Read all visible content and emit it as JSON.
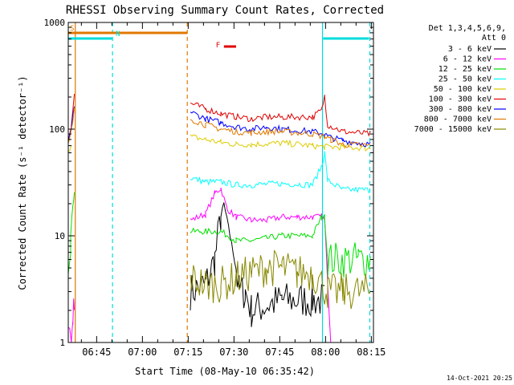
{
  "chart_data": {
    "type": "line",
    "title": "RHESSI Observing Summary Count Rates, Corrected",
    "xlabel": "Start Time (08-May-10 06:35:42)",
    "ylabel": "Corrected Count Rate (s⁻¹ detector⁻¹)",
    "y_scale": "log",
    "ylim": [
      1,
      1000
    ],
    "y_ticks": [
      1,
      10,
      100,
      1000
    ],
    "xlim_minutes": [
      0,
      100
    ],
    "x_ticks": [
      {
        "min": 9.3,
        "label": "06:45"
      },
      {
        "min": 24.3,
        "label": "07:00"
      },
      {
        "min": 39.3,
        "label": "07:15"
      },
      {
        "min": 54.3,
        "label": "07:30"
      },
      {
        "min": 69.3,
        "label": "07:45"
      },
      {
        "min": 84.3,
        "label": "08:00"
      },
      {
        "min": 99.3,
        "label": "08:15"
      }
    ],
    "legend_header": [
      "Det 1,3,4,5,6,9,",
      "Att 0"
    ],
    "legend_placement": "right",
    "timestamp": "14-Oct-2021 20:25",
    "flags": [
      {
        "label": "S",
        "color": "#e07800",
        "start": 0,
        "end": 39,
        "dashed": false
      },
      {
        "label": "N",
        "color": "#00dcdc",
        "start": 0,
        "end": 14.5,
        "dashed": false
      },
      {
        "label": "N",
        "color": "#00dcdc",
        "start": 83.5,
        "end": 98.5,
        "dashed": false
      },
      {
        "label": "F",
        "color": "#e00000",
        "start": 51,
        "end": 55,
        "dashed": false
      }
    ],
    "vlines": [
      {
        "min": 2.3,
        "color": "#e07800",
        "dashed": false
      },
      {
        "min": 14.5,
        "color": "#00dcdc",
        "dashed": true
      },
      {
        "min": 39.0,
        "color": "#e07800",
        "dashed": true
      },
      {
        "min": 83.3,
        "color": "#00dcdc",
        "dashed": false
      },
      {
        "min": 98.8,
        "color": "#00dcdc",
        "dashed": true
      }
    ],
    "series": [
      {
        "name": "3 - 6 keV",
        "color": "#000000",
        "points": [
          [
            40,
            3
          ],
          [
            45,
            3.5
          ],
          [
            48,
            6
          ],
          [
            50,
            15
          ],
          [
            51,
            20
          ],
          [
            53,
            10
          ],
          [
            55,
            5
          ],
          [
            56,
            3
          ],
          [
            58,
            3
          ],
          [
            60,
            2
          ],
          [
            70,
            2.5
          ],
          [
            80,
            2.5
          ],
          [
            83,
            2.5
          ],
          [
            84,
            2.5
          ]
        ]
      },
      {
        "name": "6 - 12 keV",
        "color": "#ff00ff",
        "points": [
          [
            0,
            1
          ],
          [
            1,
            1.2
          ],
          [
            1.5,
            2.2
          ],
          [
            2,
            2.5
          ],
          [
            40,
            14
          ],
          [
            45,
            16
          ],
          [
            48,
            25
          ],
          [
            50,
            28
          ],
          [
            52,
            18
          ],
          [
            55,
            15
          ],
          [
            60,
            14
          ],
          [
            65,
            14
          ],
          [
            70,
            15
          ],
          [
            75,
            15
          ],
          [
            80,
            15
          ],
          [
            83,
            15
          ],
          [
            84,
            14
          ],
          [
            86,
            1
          ]
        ]
      },
      {
        "name": "12 - 25 keV",
        "color": "#00e000",
        "points": [
          [
            0,
            6
          ],
          [
            0.8,
            10
          ],
          [
            1.5,
            20
          ],
          [
            2,
            25
          ],
          [
            40,
            11
          ],
          [
            45,
            11
          ],
          [
            50,
            11
          ],
          [
            55,
            9
          ],
          [
            60,
            9
          ],
          [
            70,
            10
          ],
          [
            80,
            10
          ],
          [
            83,
            15
          ],
          [
            84,
            15
          ],
          [
            85,
            6
          ],
          [
            95,
            6
          ],
          [
            99,
            6
          ]
        ]
      },
      {
        "name": "25 - 50 keV",
        "color": "#00ffff",
        "points": [
          [
            40,
            35
          ],
          [
            45,
            32
          ],
          [
            50,
            32
          ],
          [
            55,
            30
          ],
          [
            60,
            30
          ],
          [
            70,
            31
          ],
          [
            80,
            30
          ],
          [
            83,
            45
          ],
          [
            84,
            60
          ],
          [
            85,
            33
          ],
          [
            90,
            27
          ],
          [
            99,
            27
          ]
        ]
      },
      {
        "name": "50 - 100 keV",
        "color": "#ddcc00",
        "points": [
          [
            0,
            64
          ],
          [
            1,
            70
          ],
          [
            40,
            85
          ],
          [
            45,
            80
          ],
          [
            50,
            75
          ],
          [
            55,
            72
          ],
          [
            60,
            72
          ],
          [
            70,
            74
          ],
          [
            80,
            70
          ],
          [
            84,
            68
          ],
          [
            90,
            68
          ],
          [
            99,
            66
          ]
        ]
      },
      {
        "name": "100 - 300 keV",
        "color": "#e00000",
        "points": [
          [
            0,
            80
          ],
          [
            1,
            110
          ],
          [
            2,
            210
          ],
          [
            40,
            175
          ],
          [
            45,
            155
          ],
          [
            50,
            140
          ],
          [
            55,
            130
          ],
          [
            60,
            125
          ],
          [
            65,
            130
          ],
          [
            70,
            130
          ],
          [
            80,
            130
          ],
          [
            83,
            150
          ],
          [
            84,
            205
          ],
          [
            85,
            110
          ],
          [
            90,
            95
          ],
          [
            99,
            90
          ]
        ]
      },
      {
        "name": "300 - 800 keV",
        "color": "#0000ff",
        "points": [
          [
            0,
            75
          ],
          [
            1,
            100
          ],
          [
            2,
            170
          ],
          [
            40,
            145
          ],
          [
            45,
            125
          ],
          [
            50,
            115
          ],
          [
            55,
            105
          ],
          [
            60,
            100
          ],
          [
            65,
            105
          ],
          [
            70,
            100
          ],
          [
            80,
            95
          ],
          [
            84,
            90
          ],
          [
            85,
            85
          ],
          [
            90,
            78
          ],
          [
            99,
            72
          ]
        ]
      },
      {
        "name": "800 - 7000 keV",
        "color": "#e07800",
        "points": [
          [
            0,
            70
          ],
          [
            1,
            95
          ],
          [
            2,
            150
          ],
          [
            40,
            125
          ],
          [
            45,
            110
          ],
          [
            50,
            100
          ],
          [
            55,
            95
          ],
          [
            60,
            92
          ],
          [
            65,
            95
          ],
          [
            70,
            95
          ],
          [
            80,
            90
          ],
          [
            84,
            85
          ],
          [
            86,
            80
          ],
          [
            90,
            72
          ],
          [
            99,
            70
          ]
        ]
      },
      {
        "name": "7000 - 15000 keV",
        "color": "#888800",
        "points": [
          [
            40,
            4
          ],
          [
            45,
            3.5
          ],
          [
            50,
            3.5
          ],
          [
            55,
            4
          ],
          [
            60,
            4.5
          ],
          [
            65,
            5
          ],
          [
            70,
            5
          ],
          [
            75,
            4.5
          ],
          [
            80,
            4.5
          ],
          [
            85,
            3
          ],
          [
            90,
            3
          ],
          [
            99,
            3
          ]
        ]
      }
    ]
  }
}
